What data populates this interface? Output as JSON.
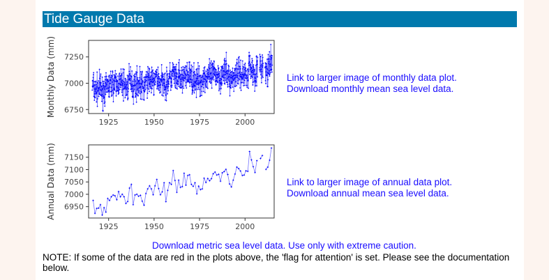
{
  "title": "Tide Gauge Data",
  "links": {
    "monthly_image": "Link to larger image of monthly data plot.",
    "monthly_download": "Download monthly mean sea level data.",
    "annual_image": "Link to larger image of annual data plot.",
    "annual_download": "Download annual mean sea level data.",
    "metric": "Download metric sea level data. Use only with extreme caution."
  },
  "note": "NOTE: If some of the data are red in the plots above, the 'flag for attention' is set. Please see the documentation below.",
  "colors": {
    "header": "#0079ad",
    "link": "#1a0dff",
    "series": "#0000ff"
  },
  "chart_data": [
    {
      "type": "line",
      "name": "monthly",
      "ylabel": "Monthly Data (mm)",
      "xlim": [
        1914,
        2016
      ],
      "ylim": [
        6712,
        7407
      ],
      "xticks": [
        1925,
        1950,
        1975,
        2000
      ],
      "yticks": [
        6750,
        7000,
        7250
      ],
      "note_series": "monthly points scatter roughly ±150 mm around annual means (1916-2014)"
    },
    {
      "type": "line",
      "name": "annual",
      "ylabel": "Annual Data (mm)",
      "xlim": [
        1914,
        2016
      ],
      "ylim": [
        6904,
        7200
      ],
      "xticks": [
        1925,
        1950,
        1975,
        2000
      ],
      "yticks": [
        6950,
        7000,
        7050,
        7100,
        7150
      ],
      "x_start": 1916,
      "values": [
        6975,
        6923,
        6943,
        6944,
        6958,
        6916,
        6946,
        6928,
        6983,
        6975,
        6990,
        6997,
        6994,
        6978,
        7011,
        6990,
        7000,
        6990,
        6963,
        6971,
        7025,
        7040,
        6958,
        6997,
        7000,
        6992,
        6996,
        6972,
        6956,
        7003,
        7022,
        7034,
        7022,
        6998,
        7034,
        7060,
        7023,
        6998,
        7010,
        7047,
        6970,
        7016,
        7047,
        7040,
        7096,
        7056,
        7008,
        7057,
        7028,
        7031,
        7085,
        7037,
        7076,
        7079,
        7040,
        7032,
        7047,
        7002,
        7033,
        7019,
        7022,
        7065,
        7048,
        7064,
        7055,
        7063,
        7083,
        7090,
        7078,
        7081,
        7053,
        7087,
        7092,
        7101,
        7080,
        7042,
        7030,
        7057,
        7082,
        7110,
        7104,
        7094,
        7076,
        7078,
        7095,
        7093,
        7173,
        7139,
        7112,
        7088,
        7136,
        null,
        7145,
        7157,
        null,
        7101,
        7110,
        7138,
        7187
      ]
    }
  ]
}
